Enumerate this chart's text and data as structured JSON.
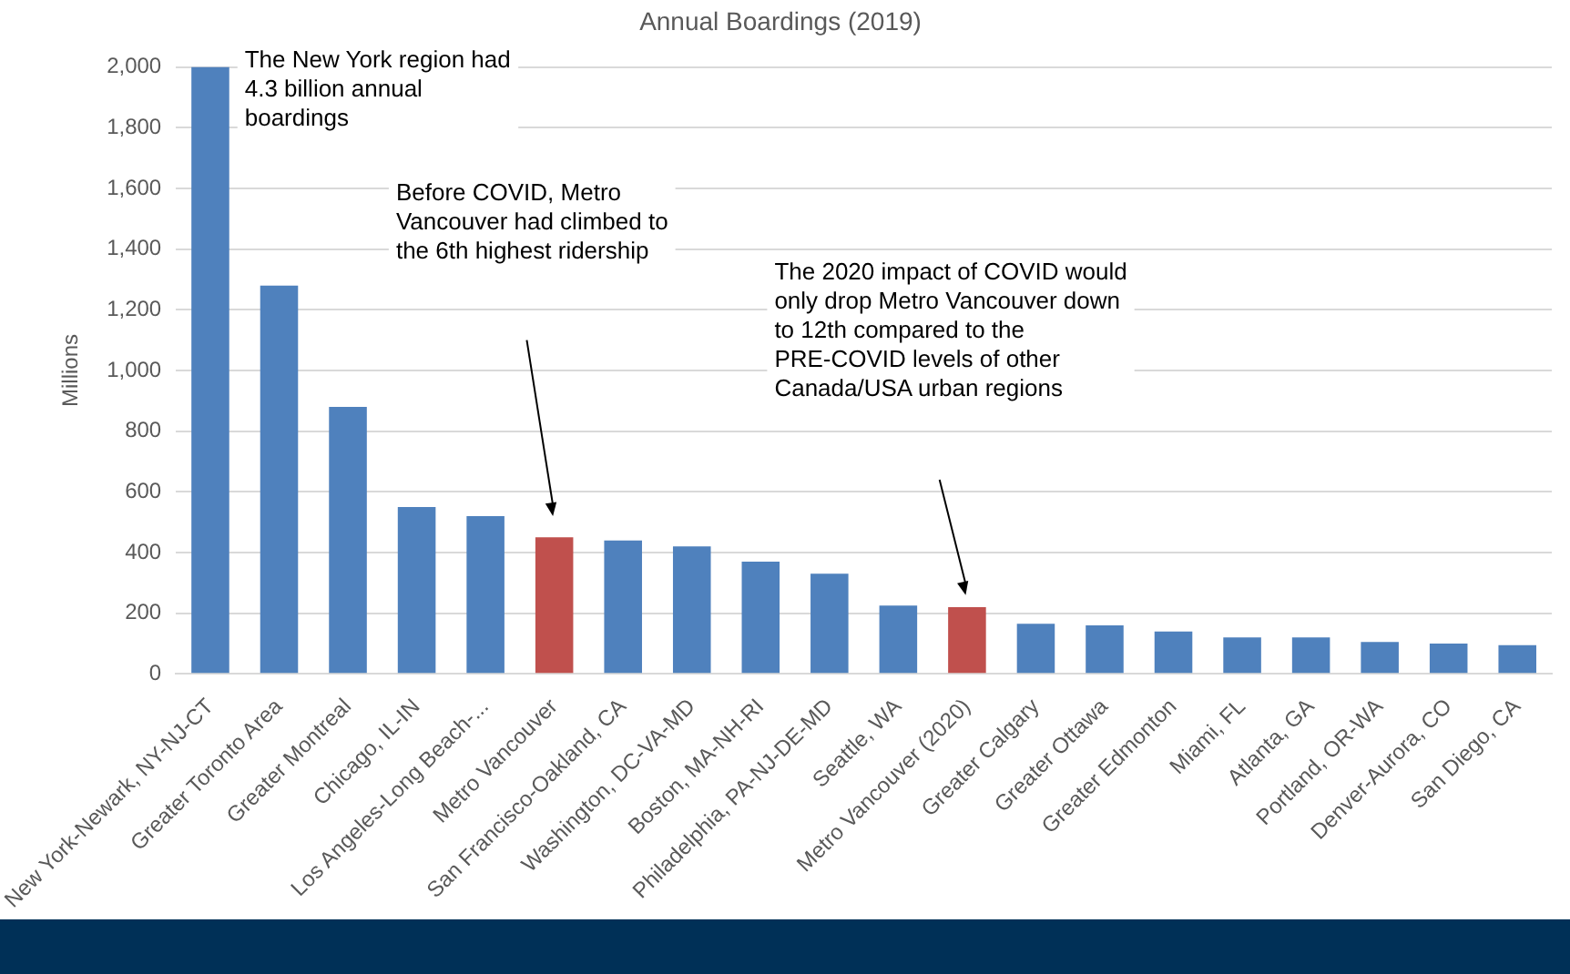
{
  "chart_data": {
    "type": "bar",
    "title": "Annual Boardings (2019)",
    "ylabel": "Millions",
    "categories": [
      "New York-Newark, NY-NJ-CT",
      "Greater Toronto Area",
      "Greater Montreal",
      "Chicago, IL-IN",
      "Los Angeles-Long Beach-...",
      "Metro Vancouver",
      "San Francisco-Oakland, CA",
      "Washington, DC-VA-MD",
      "Boston, MA-NH-RI",
      "Philadelphia, PA-NJ-DE-MD",
      "Seattle, WA",
      "Metro Vancouver (2020)",
      "Greater Calgary",
      "Greater Ottawa",
      "Greater Edmonton",
      "Miami, FL",
      "Atlanta, GA",
      "Portland, OR-WA",
      "Denver-Aurora, CO",
      "San Diego, CA"
    ],
    "values": [
      2000,
      1280,
      880,
      550,
      520,
      450,
      440,
      420,
      370,
      330,
      225,
      220,
      165,
      160,
      140,
      120,
      120,
      105,
      100,
      95
    ],
    "colors": [
      "#4f81bd",
      "#4f81bd",
      "#4f81bd",
      "#4f81bd",
      "#4f81bd",
      "#c0504d",
      "#4f81bd",
      "#4f81bd",
      "#4f81bd",
      "#4f81bd",
      "#4f81bd",
      "#c0504d",
      "#4f81bd",
      "#4f81bd",
      "#4f81bd",
      "#4f81bd",
      "#4f81bd",
      "#4f81bd",
      "#4f81bd",
      "#4f81bd"
    ],
    "ylim": [
      0,
      2000
    ],
    "yticks": [
      0,
      200,
      400,
      600,
      800,
      {
        "value": 1000,
        "label": "1,000"
      },
      {
        "value": 1200,
        "label": "1,200"
      },
      {
        "value": 1400,
        "label": "1,400"
      },
      {
        "value": 1600,
        "label": "1,600"
      },
      {
        "value": 1800,
        "label": "1,800"
      },
      {
        "value": 2000,
        "label": "2,000"
      }
    ],
    "grid": "y",
    "legend": false,
    "annotations": [
      "The New York region had 4.3 billion annual boardings",
      "Before COVID, Metro Vancouver had climbed to the 6th highest ridership",
      "The 2020 impact of COVID would only drop Metro Vancouver down to 12th compared to the PRE-COVID levels of other Canada/USA urban regions"
    ]
  }
}
